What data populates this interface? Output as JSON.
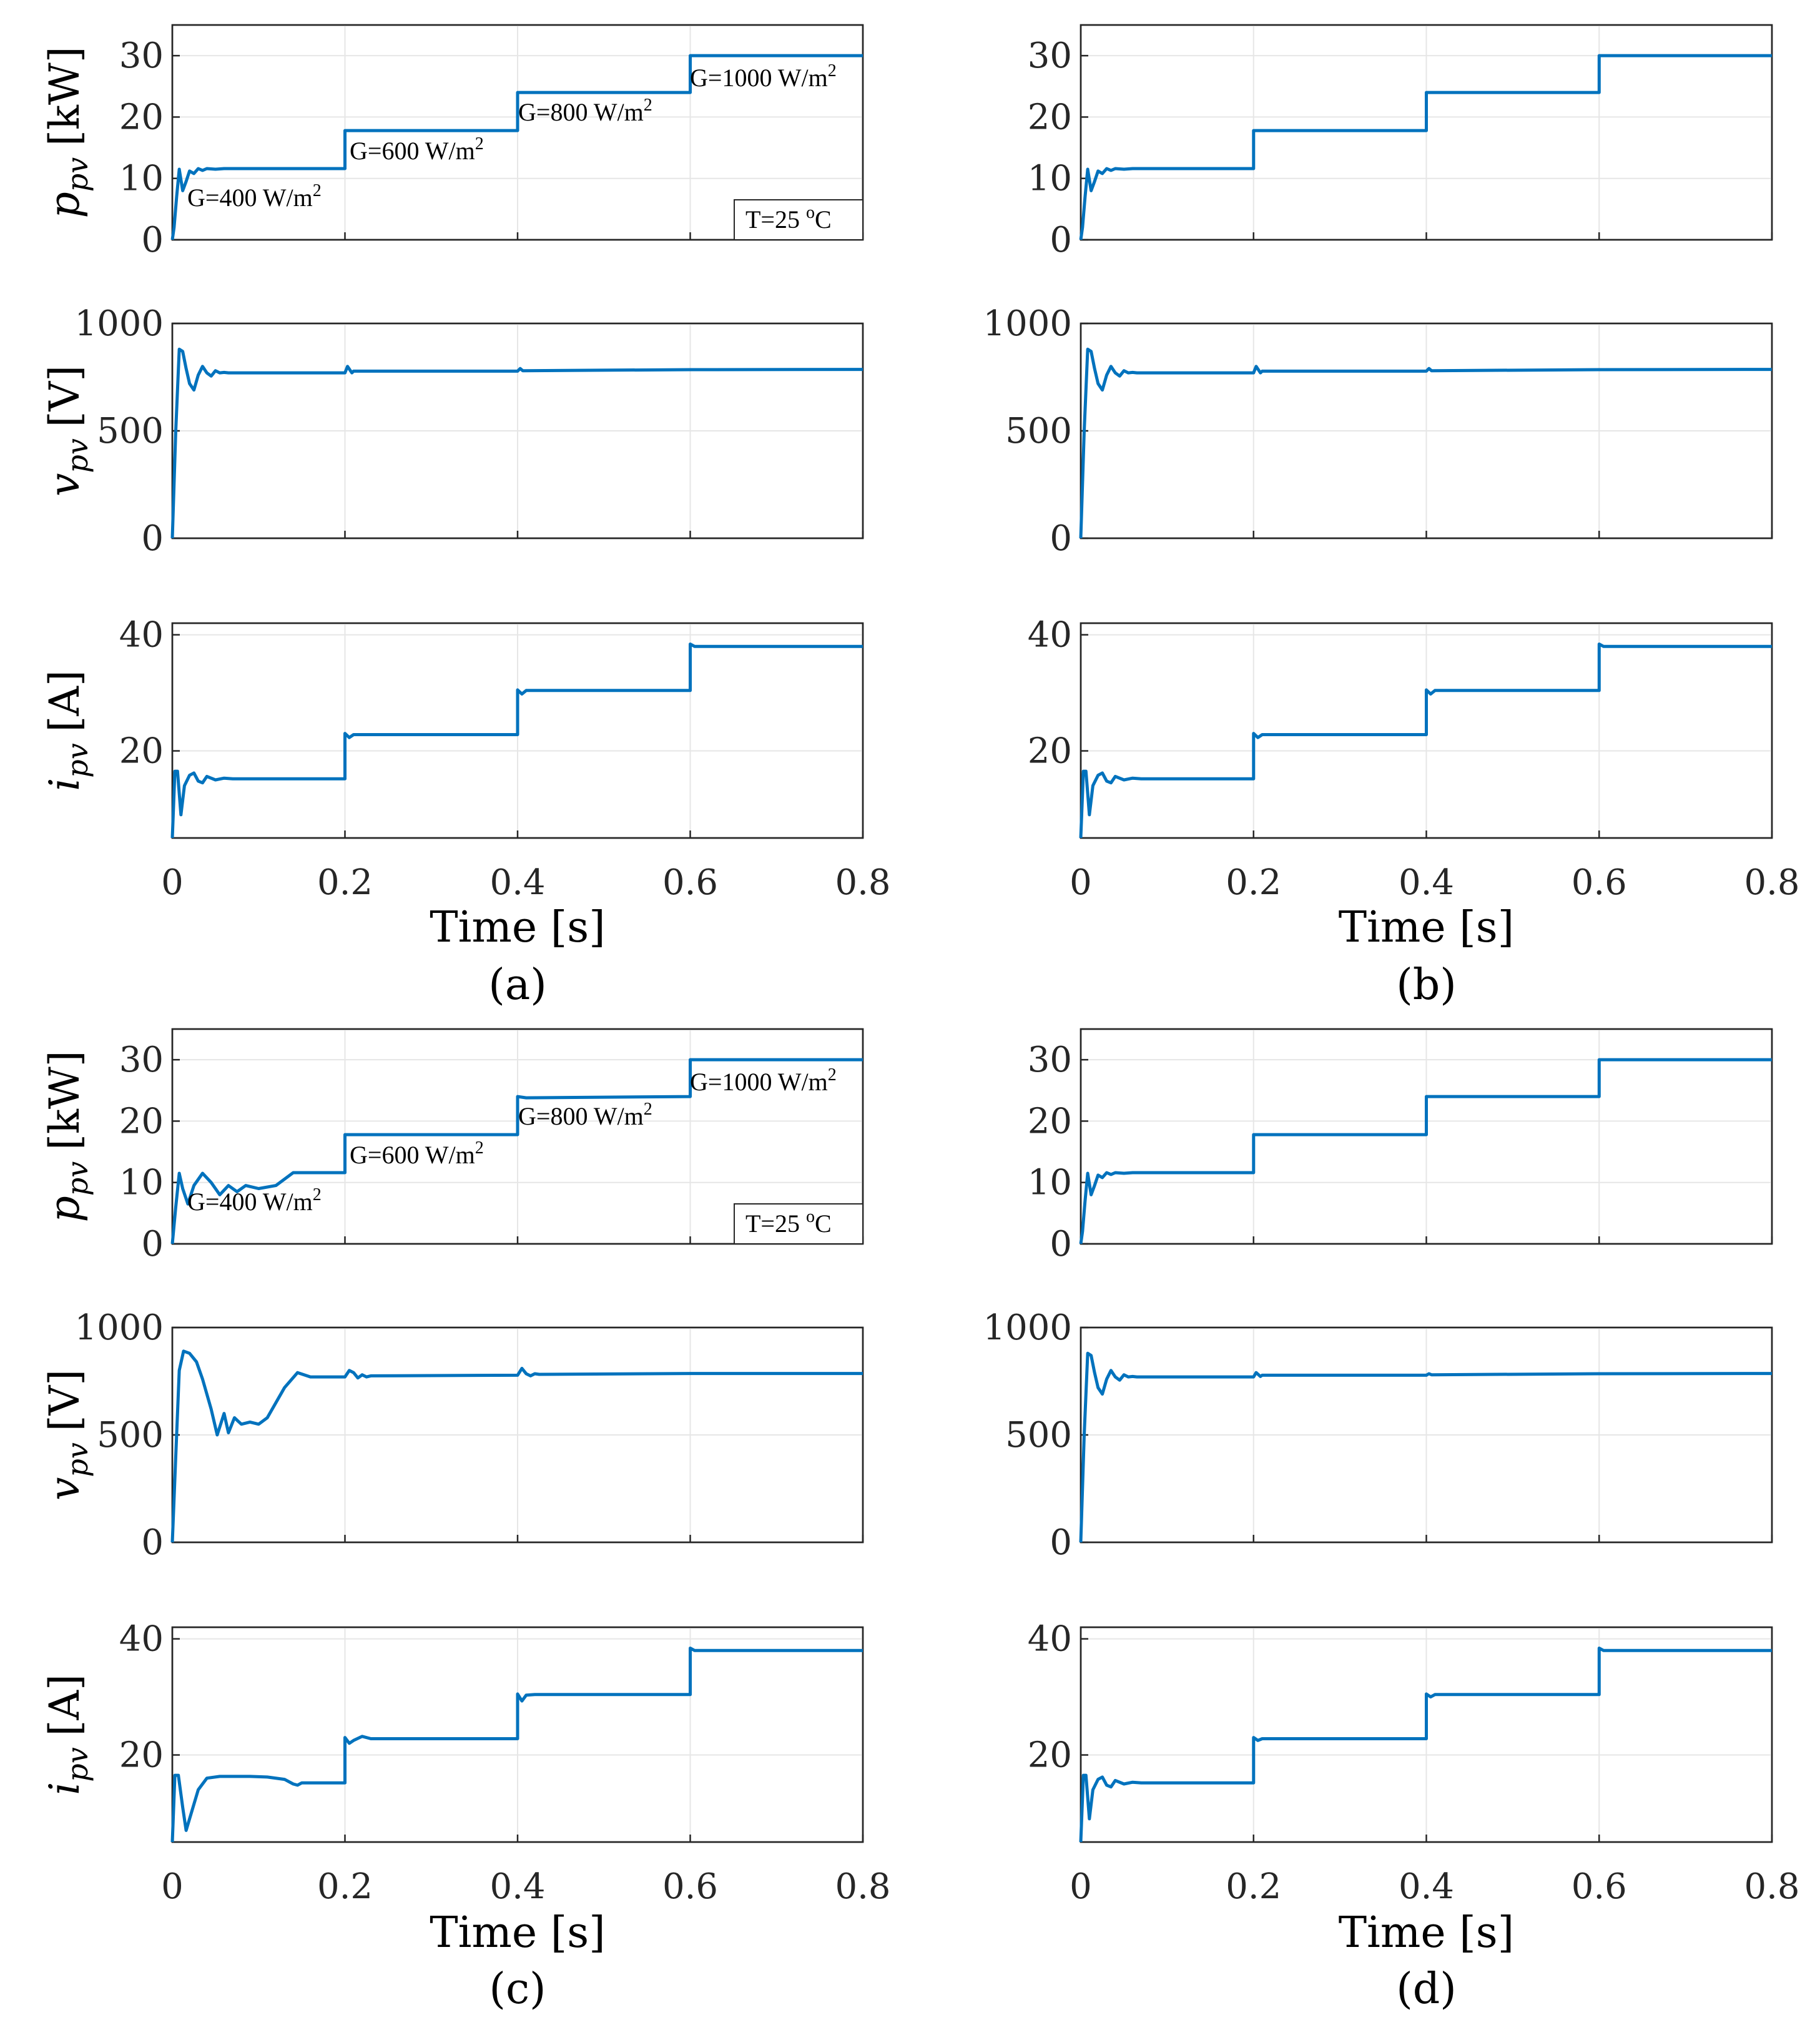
{
  "colors": {
    "trace": "#0072bd",
    "axis": "#262626",
    "grid": "#e6e6e6"
  },
  "chart_data": [
    {
      "id": "a",
      "panel_label": "(a)",
      "type": "line",
      "xlabel": "Time [s]",
      "xlim": [
        0,
        0.8
      ],
      "xticks": [
        "0",
        "0.2",
        "0.4",
        "0.6",
        "0.8"
      ],
      "temperature_label": "T=25 °C",
      "subplots": [
        {
          "quantity": "p_pv",
          "ylabel_symbol": "p",
          "ylabel_sub": "pv",
          "ylabel_unit": "[kW]",
          "ylim": [
            0,
            35
          ],
          "yticks": [
            0,
            10,
            20,
            30
          ],
          "x": [
            0,
            0.002,
            0.005,
            0.008,
            0.012,
            0.016,
            0.02,
            0.025,
            0.03,
            0.035,
            0.04,
            0.05,
            0.06,
            0.07,
            0.2,
            0.2,
            0.4,
            0.4,
            0.6,
            0.6,
            0.8
          ],
          "y": [
            0,
            2,
            7,
            11.5,
            8,
            9.5,
            11.2,
            10.8,
            11.6,
            11.3,
            11.6,
            11.5,
            11.6,
            11.6,
            11.6,
            17.8,
            17.8,
            24,
            24,
            30,
            30
          ],
          "irradiance_labels": [
            "G=400 W/m2",
            "G=600 W/m2",
            "G=800 W/m2",
            "G=1000 W/m2"
          ]
        },
        {
          "quantity": "v_pv",
          "ylabel_symbol": "v",
          "ylabel_sub": "pv",
          "ylabel_unit": "[V]",
          "ylim": [
            0,
            1000
          ],
          "yticks": [
            0,
            500,
            1000
          ],
          "x": [
            0,
            0.004,
            0.008,
            0.012,
            0.016,
            0.02,
            0.025,
            0.03,
            0.035,
            0.04,
            0.045,
            0.05,
            0.055,
            0.06,
            0.065,
            0.2,
            0.203,
            0.208,
            0.21,
            0.4,
            0.403,
            0.406,
            0.6,
            0.8
          ],
          "y": [
            0,
            500,
            880,
            870,
            790,
            720,
            690,
            760,
            800,
            770,
            755,
            780,
            770,
            772,
            770,
            770,
            800,
            770,
            778,
            778,
            790,
            780,
            785,
            786
          ]
        },
        {
          "quantity": "i_pv",
          "ylabel_symbol": "i",
          "ylabel_sub": "pv",
          "ylabel_unit": "[A]",
          "ylim": [
            5,
            42
          ],
          "yticks": [
            20,
            40
          ],
          "x": [
            0,
            0.003,
            0.006,
            0.01,
            0.014,
            0.02,
            0.025,
            0.03,
            0.035,
            0.04,
            0.05,
            0.06,
            0.07,
            0.2,
            0.2,
            0.205,
            0.21,
            0.4,
            0.4,
            0.405,
            0.41,
            0.6,
            0.6,
            0.605,
            0.8
          ],
          "y": [
            5,
            16.5,
            16.5,
            9,
            14,
            15.8,
            16.2,
            14.8,
            14.5,
            15.6,
            15,
            15.3,
            15.2,
            15.2,
            23,
            22.3,
            22.8,
            22.8,
            30.5,
            29.8,
            30.4,
            30.4,
            38.4,
            38,
            38
          ]
        }
      ]
    },
    {
      "id": "b",
      "panel_label": "(b)",
      "type": "line",
      "xlabel": "Time [s]",
      "xlim": [
        0,
        0.8
      ],
      "xticks": [
        "0",
        "0.2",
        "0.4",
        "0.6",
        "0.8"
      ],
      "subplots": [
        {
          "quantity": "p_pv",
          "ylim": [
            0,
            35
          ],
          "yticks": [
            0,
            10,
            20,
            30
          ],
          "x": [
            0,
            0.002,
            0.005,
            0.008,
            0.012,
            0.016,
            0.02,
            0.025,
            0.03,
            0.035,
            0.04,
            0.05,
            0.06,
            0.07,
            0.2,
            0.2,
            0.4,
            0.4,
            0.6,
            0.6,
            0.8
          ],
          "y": [
            0,
            2,
            7,
            11.5,
            8,
            9.5,
            11.2,
            10.8,
            11.6,
            11.3,
            11.6,
            11.5,
            11.6,
            11.6,
            11.6,
            17.8,
            17.8,
            24,
            24,
            30,
            30
          ]
        },
        {
          "quantity": "v_pv",
          "ylim": [
            0,
            1000
          ],
          "yticks": [
            0,
            500,
            1000
          ],
          "x": [
            0,
            0.004,
            0.008,
            0.012,
            0.016,
            0.02,
            0.025,
            0.03,
            0.035,
            0.04,
            0.045,
            0.05,
            0.055,
            0.06,
            0.065,
            0.2,
            0.203,
            0.208,
            0.21,
            0.4,
            0.403,
            0.406,
            0.6,
            0.8
          ],
          "y": [
            0,
            500,
            880,
            870,
            790,
            720,
            690,
            760,
            800,
            770,
            755,
            780,
            770,
            772,
            770,
            770,
            800,
            770,
            778,
            778,
            790,
            780,
            785,
            786
          ]
        },
        {
          "quantity": "i_pv",
          "ylim": [
            5,
            42
          ],
          "yticks": [
            20,
            40
          ],
          "x": [
            0,
            0.003,
            0.006,
            0.01,
            0.014,
            0.02,
            0.025,
            0.03,
            0.035,
            0.04,
            0.05,
            0.06,
            0.07,
            0.2,
            0.2,
            0.205,
            0.21,
            0.4,
            0.4,
            0.405,
            0.41,
            0.6,
            0.6,
            0.605,
            0.8
          ],
          "y": [
            5,
            16.5,
            16.5,
            9,
            14,
            15.8,
            16.2,
            14.8,
            14.5,
            15.6,
            15,
            15.3,
            15.2,
            15.2,
            23,
            22.3,
            22.8,
            22.8,
            30.5,
            29.8,
            30.4,
            30.4,
            38.4,
            38,
            38
          ]
        }
      ]
    },
    {
      "id": "c",
      "panel_label": "(c)",
      "type": "line",
      "xlabel": "Time [s]",
      "xlim": [
        0,
        0.8
      ],
      "xticks": [
        "0",
        "0.2",
        "0.4",
        "0.6",
        "0.8"
      ],
      "temperature_label": "T=25 °C",
      "subplots": [
        {
          "quantity": "p_pv",
          "ylabel_symbol": "p",
          "ylabel_sub": "pv",
          "ylabel_unit": "[kW]",
          "ylim": [
            0,
            35
          ],
          "yticks": [
            0,
            10,
            20,
            30
          ],
          "x": [
            0,
            0.004,
            0.008,
            0.012,
            0.018,
            0.025,
            0.035,
            0.045,
            0.055,
            0.065,
            0.075,
            0.085,
            0.1,
            0.12,
            0.14,
            0.2,
            0.2,
            0.22,
            0.4,
            0.4,
            0.41,
            0.6,
            0.6,
            0.8
          ],
          "y": [
            0,
            6,
            11.5,
            9,
            6.5,
            9.5,
            11.5,
            10,
            8,
            9.5,
            8.5,
            9.5,
            9,
            9.5,
            11.6,
            11.6,
            17.8,
            17.8,
            17.8,
            24,
            23.8,
            24,
            30,
            30
          ],
          "irradiance_labels": [
            "G=400 W/m2",
            "G=600 W/m2",
            "G=800 W/m2",
            "G=1000 W/m2"
          ]
        },
        {
          "quantity": "v_pv",
          "ylabel_symbol": "v",
          "ylabel_sub": "pv",
          "ylabel_unit": "[V]",
          "ylim": [
            0,
            1000
          ],
          "yticks": [
            0,
            500,
            1000
          ],
          "x": [
            0,
            0.004,
            0.008,
            0.013,
            0.02,
            0.028,
            0.035,
            0.045,
            0.052,
            0.06,
            0.065,
            0.072,
            0.08,
            0.09,
            0.1,
            0.11,
            0.13,
            0.145,
            0.16,
            0.2,
            0.205,
            0.21,
            0.215,
            0.22,
            0.225,
            0.23,
            0.4,
            0.405,
            0.41,
            0.415,
            0.42,
            0.425,
            0.6,
            0.8
          ],
          "y": [
            0,
            400,
            800,
            890,
            880,
            840,
            760,
            620,
            500,
            600,
            510,
            580,
            550,
            560,
            550,
            580,
            720,
            790,
            770,
            770,
            800,
            790,
            765,
            780,
            770,
            775,
            778,
            810,
            785,
            775,
            785,
            782,
            786,
            786
          ]
        },
        {
          "quantity": "i_pv",
          "ylabel_symbol": "i",
          "ylabel_sub": "pv",
          "ylabel_unit": "[A]",
          "ylim": [
            5,
            42
          ],
          "yticks": [
            20,
            40
          ],
          "x": [
            0,
            0.003,
            0.007,
            0.012,
            0.016,
            0.022,
            0.03,
            0.04,
            0.055,
            0.09,
            0.11,
            0.13,
            0.14,
            0.145,
            0.15,
            0.2,
            0.2,
            0.205,
            0.21,
            0.22,
            0.23,
            0.4,
            0.4,
            0.405,
            0.41,
            0.42,
            0.6,
            0.6,
            0.605,
            0.8
          ],
          "y": [
            5,
            16.5,
            16.5,
            11,
            7,
            10,
            14,
            16,
            16.3,
            16.3,
            16.2,
            15.8,
            15,
            14.8,
            15.2,
            15.2,
            23,
            22,
            22.5,
            23.2,
            22.8,
            22.8,
            30.5,
            29.3,
            30.3,
            30.4,
            30.4,
            38.4,
            38,
            38
          ]
        }
      ]
    },
    {
      "id": "d",
      "panel_label": "(d)",
      "type": "line",
      "xlabel": "Time [s]",
      "xlim": [
        0,
        0.8
      ],
      "xticks": [
        "0",
        "0.2",
        "0.4",
        "0.6",
        "0.8"
      ],
      "subplots": [
        {
          "quantity": "p_pv",
          "ylim": [
            0,
            35
          ],
          "yticks": [
            0,
            10,
            20,
            30
          ],
          "x": [
            0,
            0.002,
            0.005,
            0.008,
            0.012,
            0.016,
            0.02,
            0.025,
            0.03,
            0.035,
            0.04,
            0.05,
            0.06,
            0.07,
            0.2,
            0.2,
            0.4,
            0.4,
            0.6,
            0.6,
            0.8
          ],
          "y": [
            0,
            2,
            7,
            11.5,
            8,
            9.5,
            11.2,
            10.8,
            11.6,
            11.3,
            11.6,
            11.5,
            11.6,
            11.6,
            11.6,
            17.8,
            17.8,
            24,
            24,
            30,
            30
          ]
        },
        {
          "quantity": "v_pv",
          "ylim": [
            0,
            1000
          ],
          "yticks": [
            0,
            500,
            1000
          ],
          "x": [
            0,
            0.004,
            0.008,
            0.012,
            0.016,
            0.02,
            0.025,
            0.03,
            0.035,
            0.04,
            0.045,
            0.05,
            0.055,
            0.06,
            0.065,
            0.2,
            0.203,
            0.208,
            0.21,
            0.4,
            0.403,
            0.406,
            0.6,
            0.8
          ],
          "y": [
            0,
            500,
            880,
            870,
            790,
            720,
            690,
            760,
            800,
            770,
            755,
            780,
            770,
            772,
            770,
            770,
            790,
            772,
            778,
            778,
            785,
            780,
            785,
            786
          ]
        },
        {
          "quantity": "i_pv",
          "ylim": [
            5,
            42
          ],
          "yticks": [
            20,
            40
          ],
          "x": [
            0,
            0.003,
            0.006,
            0.01,
            0.014,
            0.02,
            0.025,
            0.03,
            0.035,
            0.04,
            0.05,
            0.06,
            0.07,
            0.2,
            0.2,
            0.205,
            0.21,
            0.4,
            0.4,
            0.405,
            0.41,
            0.6,
            0.6,
            0.605,
            0.8
          ],
          "y": [
            5,
            16.5,
            16.5,
            9,
            14,
            15.8,
            16.2,
            14.8,
            14.5,
            15.6,
            15,
            15.3,
            15.2,
            15.2,
            23,
            22.5,
            22.8,
            22.8,
            30.5,
            30,
            30.4,
            30.4,
            38.4,
            38,
            38
          ]
        }
      ]
    }
  ]
}
